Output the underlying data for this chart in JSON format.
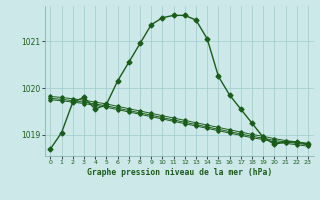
{
  "background_color": "#cce8e8",
  "grid_color": "#99cccc",
  "line_color": "#1a5c1a",
  "line_width": 1.0,
  "marker": "D",
  "marker_size": 2.5,
  "title": "Graphe pression niveau de la mer (hPa)",
  "xlim": [
    -0.5,
    23.5
  ],
  "ylim": [
    1018.55,
    1021.75
  ],
  "yticks": [
    1019,
    1020,
    1021
  ],
  "xticks": [
    0,
    1,
    2,
    3,
    4,
    5,
    6,
    7,
    8,
    9,
    10,
    11,
    12,
    13,
    14,
    15,
    16,
    17,
    18,
    19,
    20,
    21,
    22,
    23
  ],
  "series": [
    [
      1018.7,
      1019.05,
      1019.7,
      1019.8,
      1019.55,
      1019.65,
      1020.15,
      1020.55,
      1020.95,
      1021.35,
      1021.5,
      1021.55,
      1021.55,
      1021.45,
      1021.05,
      1020.25,
      1019.85,
      1019.55,
      1019.25,
      1018.95,
      1018.8,
      1018.85,
      1018.85,
      1018.8
    ],
    [
      1019.82,
      1019.8,
      1019.77,
      1019.74,
      1019.7,
      1019.66,
      1019.61,
      1019.56,
      1019.51,
      1019.46,
      1019.41,
      1019.36,
      1019.31,
      1019.26,
      1019.21,
      1019.16,
      1019.11,
      1019.06,
      1019.01,
      1018.97,
      1018.92,
      1018.88,
      1018.85,
      1018.82
    ],
    [
      1019.78,
      1019.76,
      1019.73,
      1019.7,
      1019.66,
      1019.62,
      1019.57,
      1019.52,
      1019.47,
      1019.42,
      1019.37,
      1019.32,
      1019.27,
      1019.22,
      1019.17,
      1019.12,
      1019.07,
      1019.02,
      1018.97,
      1018.93,
      1018.88,
      1018.85,
      1018.82,
      1018.79
    ],
    [
      1019.75,
      1019.73,
      1019.7,
      1019.67,
      1019.63,
      1019.59,
      1019.54,
      1019.49,
      1019.44,
      1019.39,
      1019.34,
      1019.29,
      1019.24,
      1019.19,
      1019.14,
      1019.09,
      1019.04,
      1018.99,
      1018.94,
      1018.9,
      1018.85,
      1018.82,
      1018.79,
      1018.76
    ]
  ]
}
